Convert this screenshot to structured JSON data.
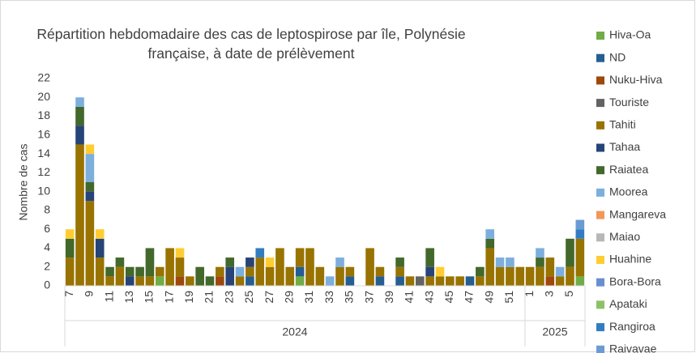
{
  "chart_data": {
    "type": "bar",
    "stacked": true,
    "title": "Répartition hebdomadaire des cas de leptospirose par île, Polynésie française, à date de prélèvement",
    "y_label": "Nombre de cas",
    "categories": [
      "7",
      null,
      "9",
      null,
      "11",
      null,
      "13",
      null,
      "15",
      null,
      "17",
      null,
      "19",
      null,
      "21",
      null,
      "23",
      null,
      "25",
      null,
      "27",
      null,
      "29",
      null,
      "31",
      null,
      "33",
      null,
      "35",
      null,
      "37",
      null,
      "39",
      null,
      "41",
      null,
      "43",
      null,
      "45",
      null,
      "47",
      null,
      "49",
      null,
      "51",
      null,
      "1",
      null,
      "3",
      null,
      "5",
      null
    ],
    "groups": [
      {
        "name": "2024",
        "count": 46
      },
      {
        "name": "2025",
        "count": 6
      }
    ],
    "ylim": [
      0,
      22
    ],
    "yticks": [
      0,
      2,
      4,
      6,
      8,
      10,
      12,
      14,
      16,
      18,
      20,
      22
    ],
    "grid": false,
    "legend": "right",
    "series": [
      {
        "name": "Hiva-Oa",
        "color": "#70ad47",
        "values": [
          0,
          0,
          0,
          0,
          0,
          0,
          0,
          0,
          0,
          1,
          0,
          0,
          0,
          0,
          0,
          0,
          0,
          0,
          0,
          0,
          0,
          0,
          0,
          1,
          0,
          0,
          0,
          0,
          0,
          0,
          0,
          0,
          0,
          0,
          0,
          0,
          0,
          0,
          0,
          0,
          0,
          0,
          0,
          0,
          0,
          0,
          0,
          0,
          0,
          0,
          0,
          1
        ]
      },
      {
        "name": "ND",
        "color": "#255e91",
        "values": [
          0,
          0,
          0,
          0,
          0,
          0,
          0,
          0,
          0,
          0,
          0,
          0,
          0,
          0,
          0,
          0,
          0,
          0,
          1,
          0,
          0,
          0,
          0,
          1,
          0,
          0,
          0,
          0,
          1,
          0,
          0,
          1,
          0,
          1,
          0,
          0,
          0,
          0,
          0,
          0,
          1,
          0,
          0,
          0,
          0,
          0,
          0,
          0,
          0,
          0,
          0,
          0
        ]
      },
      {
        "name": "Nuku-Hiva",
        "color": "#9e480e",
        "values": [
          0,
          0,
          0,
          0,
          0,
          0,
          0,
          0,
          0,
          0,
          0,
          1,
          0,
          0,
          0,
          1,
          0,
          0,
          0,
          0,
          0,
          0,
          0,
          0,
          0,
          0,
          0,
          0,
          0,
          0,
          0,
          0,
          0,
          0,
          0,
          0,
          0,
          0,
          0,
          0,
          0,
          0,
          0,
          0,
          0,
          0,
          0,
          0,
          1,
          0,
          0,
          0
        ]
      },
      {
        "name": "Touriste",
        "color": "#636363",
        "values": [
          0,
          0,
          0,
          0,
          0,
          0,
          0,
          0,
          0,
          0,
          0,
          0,
          0,
          0,
          0,
          0,
          0,
          0,
          0,
          0,
          0,
          0,
          0,
          0,
          0,
          0,
          0,
          0,
          0,
          0,
          0,
          0,
          0,
          0,
          0,
          1,
          0,
          0,
          0,
          0,
          0,
          0,
          0,
          0,
          0,
          0,
          0,
          0,
          0,
          0,
          0,
          0
        ]
      },
      {
        "name": "Tahiti",
        "color": "#997300",
        "values": [
          3,
          15,
          9,
          3,
          1,
          2,
          0,
          1,
          1,
          1,
          4,
          2,
          1,
          0,
          0,
          1,
          0,
          1,
          1,
          3,
          2,
          4,
          2,
          2,
          4,
          2,
          0,
          2,
          1,
          0,
          4,
          1,
          0,
          1,
          1,
          0,
          1,
          1,
          1,
          1,
          0,
          1,
          4,
          2,
          2,
          2,
          2,
          2,
          2,
          1,
          2,
          4
        ]
      },
      {
        "name": "Tahaa",
        "color": "#264478",
        "values": [
          0,
          2,
          1,
          2,
          0,
          0,
          1,
          0,
          0,
          0,
          0,
          0,
          0,
          0,
          0,
          0,
          2,
          0,
          1,
          0,
          0,
          0,
          0,
          0,
          0,
          0,
          0,
          0,
          0,
          0,
          0,
          0,
          0,
          0,
          0,
          0,
          1,
          0,
          0,
          0,
          0,
          0,
          0,
          0,
          0,
          0,
          0,
          0,
          0,
          0,
          0,
          0
        ]
      },
      {
        "name": "Raiatea",
        "color": "#43682b",
        "values": [
          2,
          2,
          1,
          0,
          1,
          1,
          1,
          1,
          3,
          0,
          0,
          0,
          0,
          2,
          1,
          0,
          1,
          0,
          0,
          0,
          0,
          0,
          0,
          0,
          0,
          0,
          0,
          0,
          0,
          0,
          0,
          0,
          0,
          1,
          0,
          0,
          2,
          0,
          0,
          0,
          0,
          1,
          1,
          0,
          0,
          0,
          0,
          1,
          0,
          0,
          3,
          0
        ]
      },
      {
        "name": "Moorea",
        "color": "#7cafdd",
        "values": [
          0,
          1,
          3,
          0,
          0,
          0,
          0,
          0,
          0,
          0,
          0,
          0,
          0,
          0,
          0,
          0,
          0,
          1,
          0,
          0,
          0,
          0,
          0,
          0,
          0,
          0,
          1,
          1,
          0,
          0,
          0,
          0,
          0,
          0,
          0,
          0,
          0,
          0,
          0,
          0,
          0,
          0,
          1,
          1,
          1,
          0,
          0,
          1,
          0,
          1,
          0,
          0
        ]
      },
      {
        "name": "Mangareva",
        "color": "#f1975a",
        "values": [
          0,
          0,
          0,
          0,
          0,
          0,
          0,
          0,
          0,
          0,
          0,
          0,
          0,
          0,
          0,
          0,
          0,
          0,
          0,
          0,
          0,
          0,
          0,
          0,
          0,
          0,
          0,
          0,
          0,
          0,
          0,
          0,
          0,
          0,
          0,
          0,
          0,
          0,
          0,
          0,
          0,
          0,
          0,
          0,
          0,
          0,
          0,
          0,
          0,
          0,
          0,
          0
        ]
      },
      {
        "name": "Maiao",
        "color": "#b7b7b7",
        "values": [
          0,
          0,
          0,
          0,
          0,
          0,
          0,
          0,
          0,
          0,
          0,
          0,
          0,
          0,
          0,
          0,
          0,
          0,
          0,
          0,
          0,
          0,
          0,
          0,
          0,
          0,
          0,
          0,
          0,
          0,
          0,
          0,
          0,
          0,
          0,
          0,
          0,
          0,
          0,
          0,
          0,
          0,
          0,
          0,
          0,
          0,
          0,
          0,
          0,
          0,
          0,
          0
        ]
      },
      {
        "name": "Huahine",
        "color": "#ffcd33",
        "values": [
          1,
          0,
          1,
          1,
          0,
          0,
          0,
          0,
          0,
          0,
          0,
          1,
          0,
          0,
          0,
          0,
          0,
          0,
          0,
          0,
          1,
          0,
          0,
          0,
          0,
          0,
          0,
          0,
          0,
          0,
          0,
          0,
          0,
          0,
          0,
          0,
          0,
          1,
          0,
          0,
          0,
          0,
          0,
          0,
          0,
          0,
          0,
          0,
          0,
          0,
          0,
          0
        ]
      },
      {
        "name": "Bora-Bora",
        "color": "#698ed0",
        "values": [
          0,
          0,
          0,
          0,
          0,
          0,
          0,
          0,
          0,
          0,
          0,
          0,
          0,
          0,
          0,
          0,
          0,
          0,
          0,
          0,
          0,
          0,
          0,
          0,
          0,
          0,
          0,
          0,
          0,
          0,
          0,
          0,
          0,
          0,
          0,
          0,
          0,
          0,
          0,
          0,
          0,
          0,
          0,
          0,
          0,
          0,
          0,
          0,
          0,
          0,
          0,
          0
        ]
      },
      {
        "name": "Apataki",
        "color": "#8cc168",
        "values": [
          0,
          0,
          0,
          0,
          0,
          0,
          0,
          0,
          0,
          0,
          0,
          0,
          0,
          0,
          0,
          0,
          0,
          0,
          0,
          0,
          0,
          0,
          0,
          0,
          0,
          0,
          0,
          0,
          0,
          0,
          0,
          0,
          0,
          0,
          0,
          0,
          0,
          0,
          0,
          0,
          0,
          0,
          0,
          0,
          0,
          0,
          0,
          0,
          0,
          0,
          0,
          0
        ]
      },
      {
        "name": "Rangiroa",
        "color": "#327dc2",
        "values": [
          0,
          0,
          0,
          0,
          0,
          0,
          0,
          0,
          0,
          0,
          0,
          0,
          0,
          0,
          0,
          0,
          0,
          0,
          0,
          1,
          0,
          0,
          0,
          0,
          0,
          0,
          0,
          0,
          0,
          0,
          0,
          0,
          0,
          0,
          0,
          0,
          0,
          0,
          0,
          0,
          0,
          0,
          0,
          0,
          0,
          0,
          0,
          0,
          0,
          0,
          0,
          1
        ]
      },
      {
        "name": "Raivavae",
        "color": "#6b9bd2",
        "values": [
          0,
          0,
          0,
          0,
          0,
          0,
          0,
          0,
          0,
          0,
          0,
          0,
          0,
          0,
          0,
          0,
          0,
          0,
          0,
          0,
          0,
          0,
          0,
          0,
          0,
          0,
          0,
          0,
          0,
          0,
          0,
          0,
          0,
          0,
          0,
          0,
          0,
          0,
          0,
          0,
          0,
          0,
          0,
          0,
          0,
          0,
          0,
          0,
          0,
          0,
          0,
          1
        ]
      }
    ]
  }
}
